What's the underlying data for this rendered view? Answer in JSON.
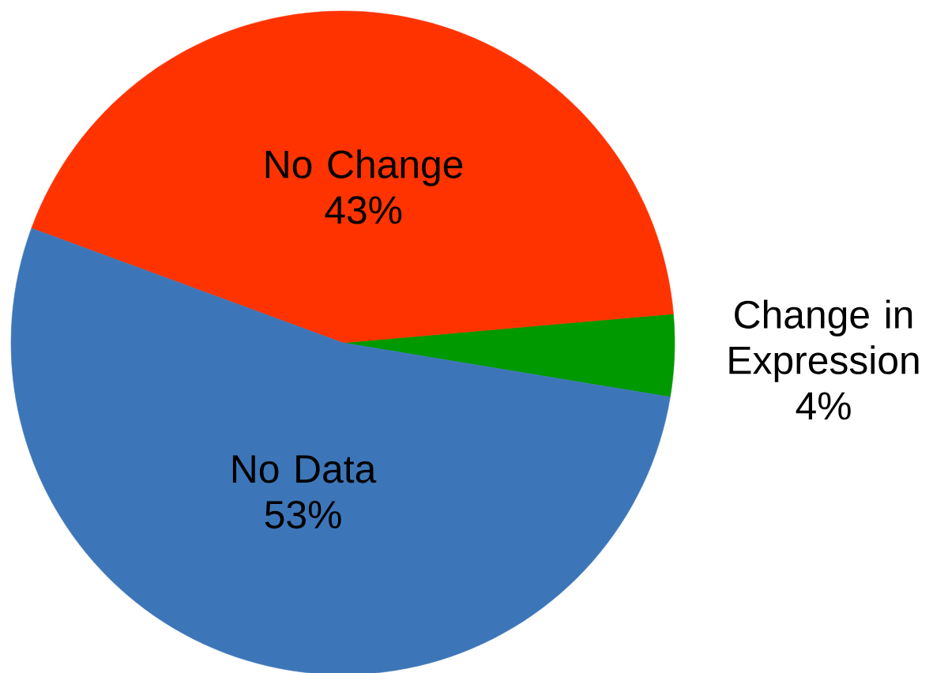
{
  "chart_data": {
    "type": "pie",
    "categories": [
      "Change in Expression",
      "No Change",
      "No Data"
    ],
    "values": [
      4,
      43,
      53
    ],
    "value_labels": [
      "4%",
      "43%",
      "53%"
    ],
    "colors": [
      "#009900",
      "#ff3300",
      "#3d76b8"
    ]
  }
}
